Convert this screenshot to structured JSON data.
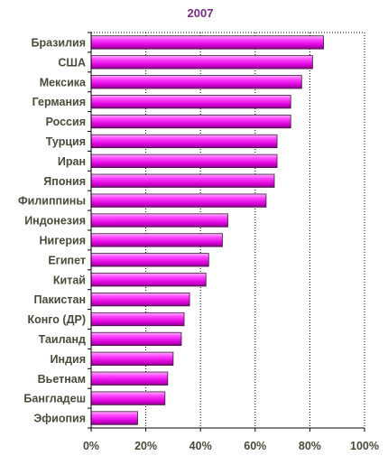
{
  "chart_data": {
    "type": "bar",
    "orientation": "horizontal",
    "title": "2007",
    "categories": [
      "Бразилия",
      "США",
      "Мексика",
      "Германия",
      "Россия",
      "Турция",
      "Иран",
      "Япония",
      "Филиппины",
      "Индонезия",
      "Нигерия",
      "Египет",
      "Китай",
      "Пакистан",
      "Конго (ДР)",
      "Таиланд",
      "Индия",
      "Вьетнам",
      "Бангладеш",
      "Эфиопия"
    ],
    "values": [
      85,
      81,
      77,
      73,
      73,
      68,
      68,
      67,
      64,
      50,
      48,
      43,
      42,
      36,
      34,
      33,
      30,
      28,
      27,
      17
    ],
    "xlim": [
      0,
      100
    ],
    "ticks": [
      0,
      20,
      40,
      60,
      80,
      100
    ],
    "tick_labels": [
      "0%",
      "20%",
      "40%",
      "60%",
      "80%",
      "100%"
    ],
    "xlabel": "",
    "ylabel": "",
    "grid": "vertical, dotted",
    "legend": "none",
    "colors": {
      "bar_fill_light": "#ff99ff",
      "bar_fill_mid": "#ee22ee",
      "bar_fill_dark": "#990099",
      "bar_stroke": "#3a1a3a",
      "title": "#7a2a8a",
      "labels": "#4a4a3a",
      "axis": "#000000"
    }
  }
}
